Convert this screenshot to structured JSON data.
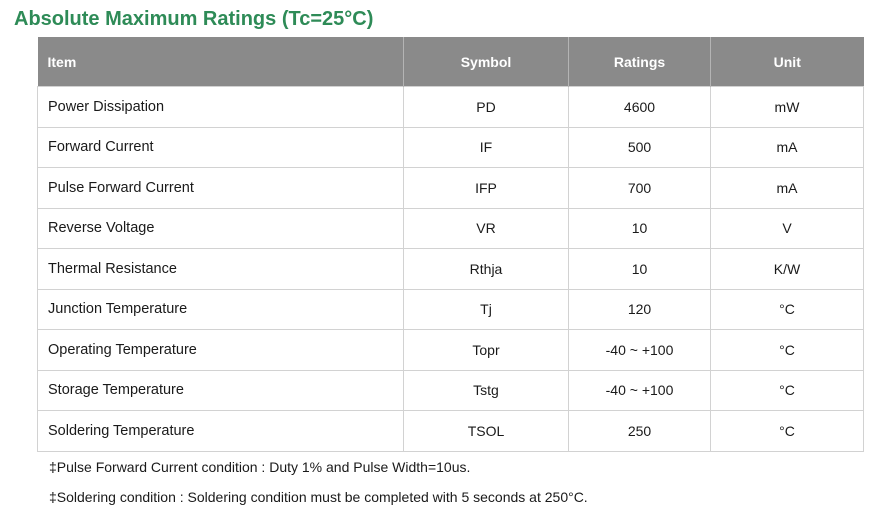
{
  "title": "Absolute Maximum Ratings (Tc=25°C)",
  "table": {
    "headers": [
      "Item",
      "Symbol",
      "Ratings",
      "Unit"
    ],
    "rows": [
      [
        "Power Dissipation",
        "PD",
        "4600",
        "mW"
      ],
      [
        "Forward Current",
        "IF",
        "500",
        "mA"
      ],
      [
        "Pulse Forward Current",
        "IFP",
        "700",
        "mA"
      ],
      [
        "Reverse Voltage",
        "VR",
        "10",
        "V"
      ],
      [
        "Thermal Resistance",
        "Rthja",
        "10",
        "K/W"
      ],
      [
        "Junction Temperature",
        "Tj",
        "120",
        "°C"
      ],
      [
        "Operating Temperature",
        "Topr",
        "-40 ~ +100",
        "°C"
      ],
      [
        "Storage Temperature",
        "Tstg",
        "-40 ~ +100",
        "°C"
      ],
      [
        "Soldering Temperature",
        "TSOL",
        "250",
        "°C"
      ]
    ]
  },
  "notes": [
    "‡Pulse Forward Current condition : Duty 1% and Pulse Width=10us.",
    "‡Soldering condition : Soldering condition must be completed with 5 seconds at 250°C."
  ],
  "colors": {
    "title": "#2e8b57",
    "header_bg": "#8a8a8a"
  }
}
